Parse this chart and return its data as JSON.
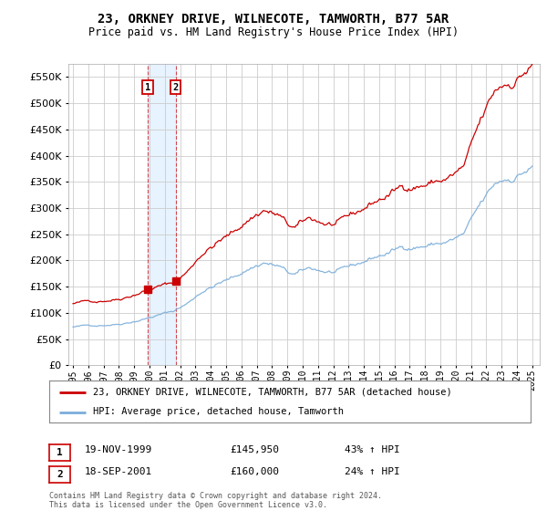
{
  "title": "23, ORKNEY DRIVE, WILNECOTE, TAMWORTH, B77 5AR",
  "subtitle": "Price paid vs. HM Land Registry's House Price Index (HPI)",
  "legend_line1": "23, ORKNEY DRIVE, WILNECOTE, TAMWORTH, B77 5AR (detached house)",
  "legend_line2": "HPI: Average price, detached house, Tamworth",
  "transaction1_date": "19-NOV-1999",
  "transaction1_price": "£145,950",
  "transaction1_hpi": "43% ↑ HPI",
  "transaction2_date": "18-SEP-2001",
  "transaction2_price": "£160,000",
  "transaction2_hpi": "24% ↑ HPI",
  "footnote": "Contains HM Land Registry data © Crown copyright and database right 2024.\nThis data is licensed under the Open Government Licence v3.0.",
  "red_color": "#cc0000",
  "blue_color": "#7aadda",
  "background_color": "#ffffff",
  "grid_color": "#cccccc",
  "shade_color": "#ddeeff",
  "ylim": [
    0,
    575000
  ],
  "yticks": [
    0,
    50000,
    100000,
    150000,
    200000,
    250000,
    300000,
    350000,
    400000,
    450000,
    500000,
    550000
  ],
  "xlim_start": 1994.7,
  "xlim_end": 2025.5,
  "transaction1_x": 1999.88,
  "transaction2_x": 2001.71,
  "transaction1_y": 145950,
  "transaction2_y": 160000
}
